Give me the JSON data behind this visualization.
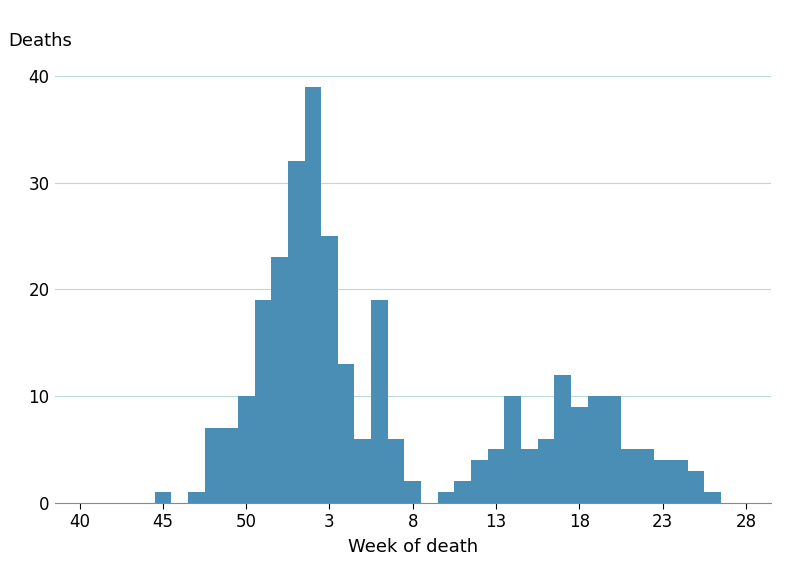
{
  "ylabel": "Deaths",
  "xlabel": "Week of death",
  "bar_color": "#4a8db5",
  "background_color": "#ffffff",
  "grid_color": "#b8dada",
  "ylim": [
    0,
    42
  ],
  "yticks": [
    0,
    10,
    20,
    30,
    40
  ],
  "xtick_labels": [
    "40",
    "45",
    "50",
    "3",
    "8",
    "13",
    "18",
    "23",
    "28"
  ],
  "xtick_positions": [
    40,
    45,
    50,
    55,
    60,
    65,
    70,
    75,
    80
  ],
  "all_weeks": [
    40,
    41,
    42,
    43,
    44,
    45,
    46,
    47,
    48,
    49,
    50,
    51,
    52,
    53,
    54,
    55,
    56,
    57,
    58,
    59,
    60,
    61,
    62,
    63,
    64,
    65,
    66,
    67,
    68,
    69,
    70,
    71,
    72,
    73,
    74,
    75,
    76,
    77,
    78,
    79,
    80
  ],
  "all_deaths": [
    0,
    0,
    0,
    0,
    0,
    1,
    0,
    1,
    7,
    7,
    10,
    19,
    23,
    32,
    39,
    25,
    13,
    6,
    19,
    6,
    2,
    0,
    1,
    2,
    4,
    5,
    10,
    5,
    6,
    12,
    9,
    10,
    10,
    5,
    5,
    4,
    4,
    3,
    1,
    0,
    0
  ],
  "xlim": [
    38.5,
    81.5
  ],
  "figsize": [
    7.86,
    5.71
  ],
  "dpi": 100
}
